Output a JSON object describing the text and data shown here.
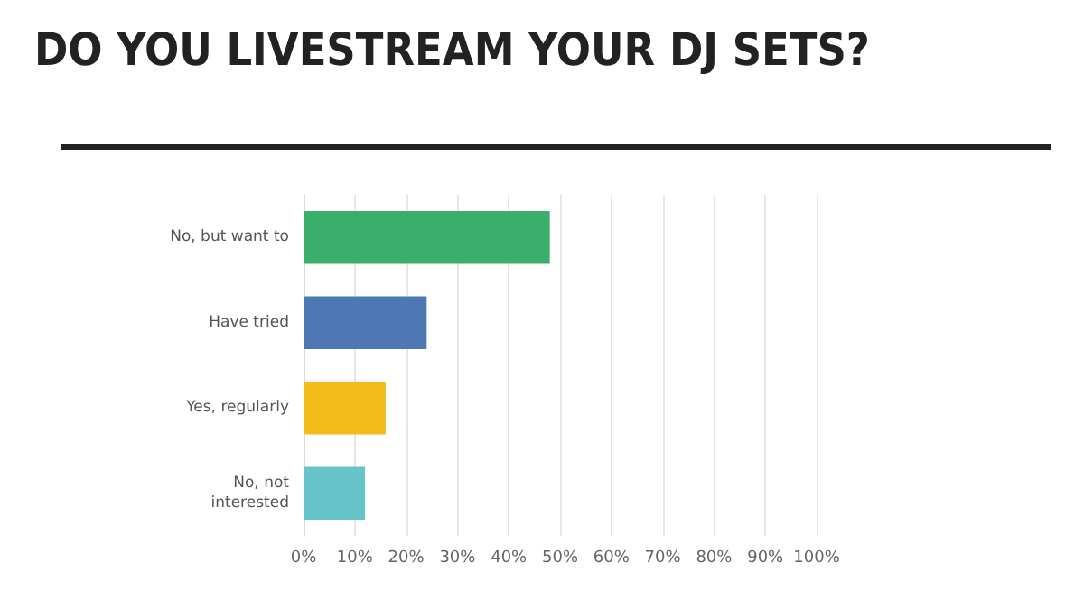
{
  "chart_data": {
    "type": "bar",
    "orientation": "horizontal",
    "title": "DO YOU LIVESTREAM YOUR DJ SETS?",
    "categories": [
      "No, but want to",
      "Have tried",
      "Yes, regularly",
      "No, not\ninterested"
    ],
    "values": [
      48,
      24,
      16,
      12
    ],
    "colors": [
      "#3aae6b",
      "#4d78b4",
      "#f4bb1a",
      "#67c5c9"
    ],
    "xlim": [
      0,
      100
    ],
    "xticks": [
      {
        "value": 0,
        "label": "0%"
      },
      {
        "value": 10,
        "label": "10%"
      },
      {
        "value": 20,
        "label": "20%"
      },
      {
        "value": 30,
        "label": "30%"
      },
      {
        "value": 40,
        "label": "40%"
      },
      {
        "value": 50,
        "label": "50%"
      },
      {
        "value": 60,
        "label": "60%"
      },
      {
        "value": 70,
        "label": "70%"
      },
      {
        "value": 80,
        "label": "80%"
      },
      {
        "value": 90,
        "label": "90%"
      },
      {
        "value": 100,
        "label": "100%"
      }
    ],
    "grid": "x"
  }
}
